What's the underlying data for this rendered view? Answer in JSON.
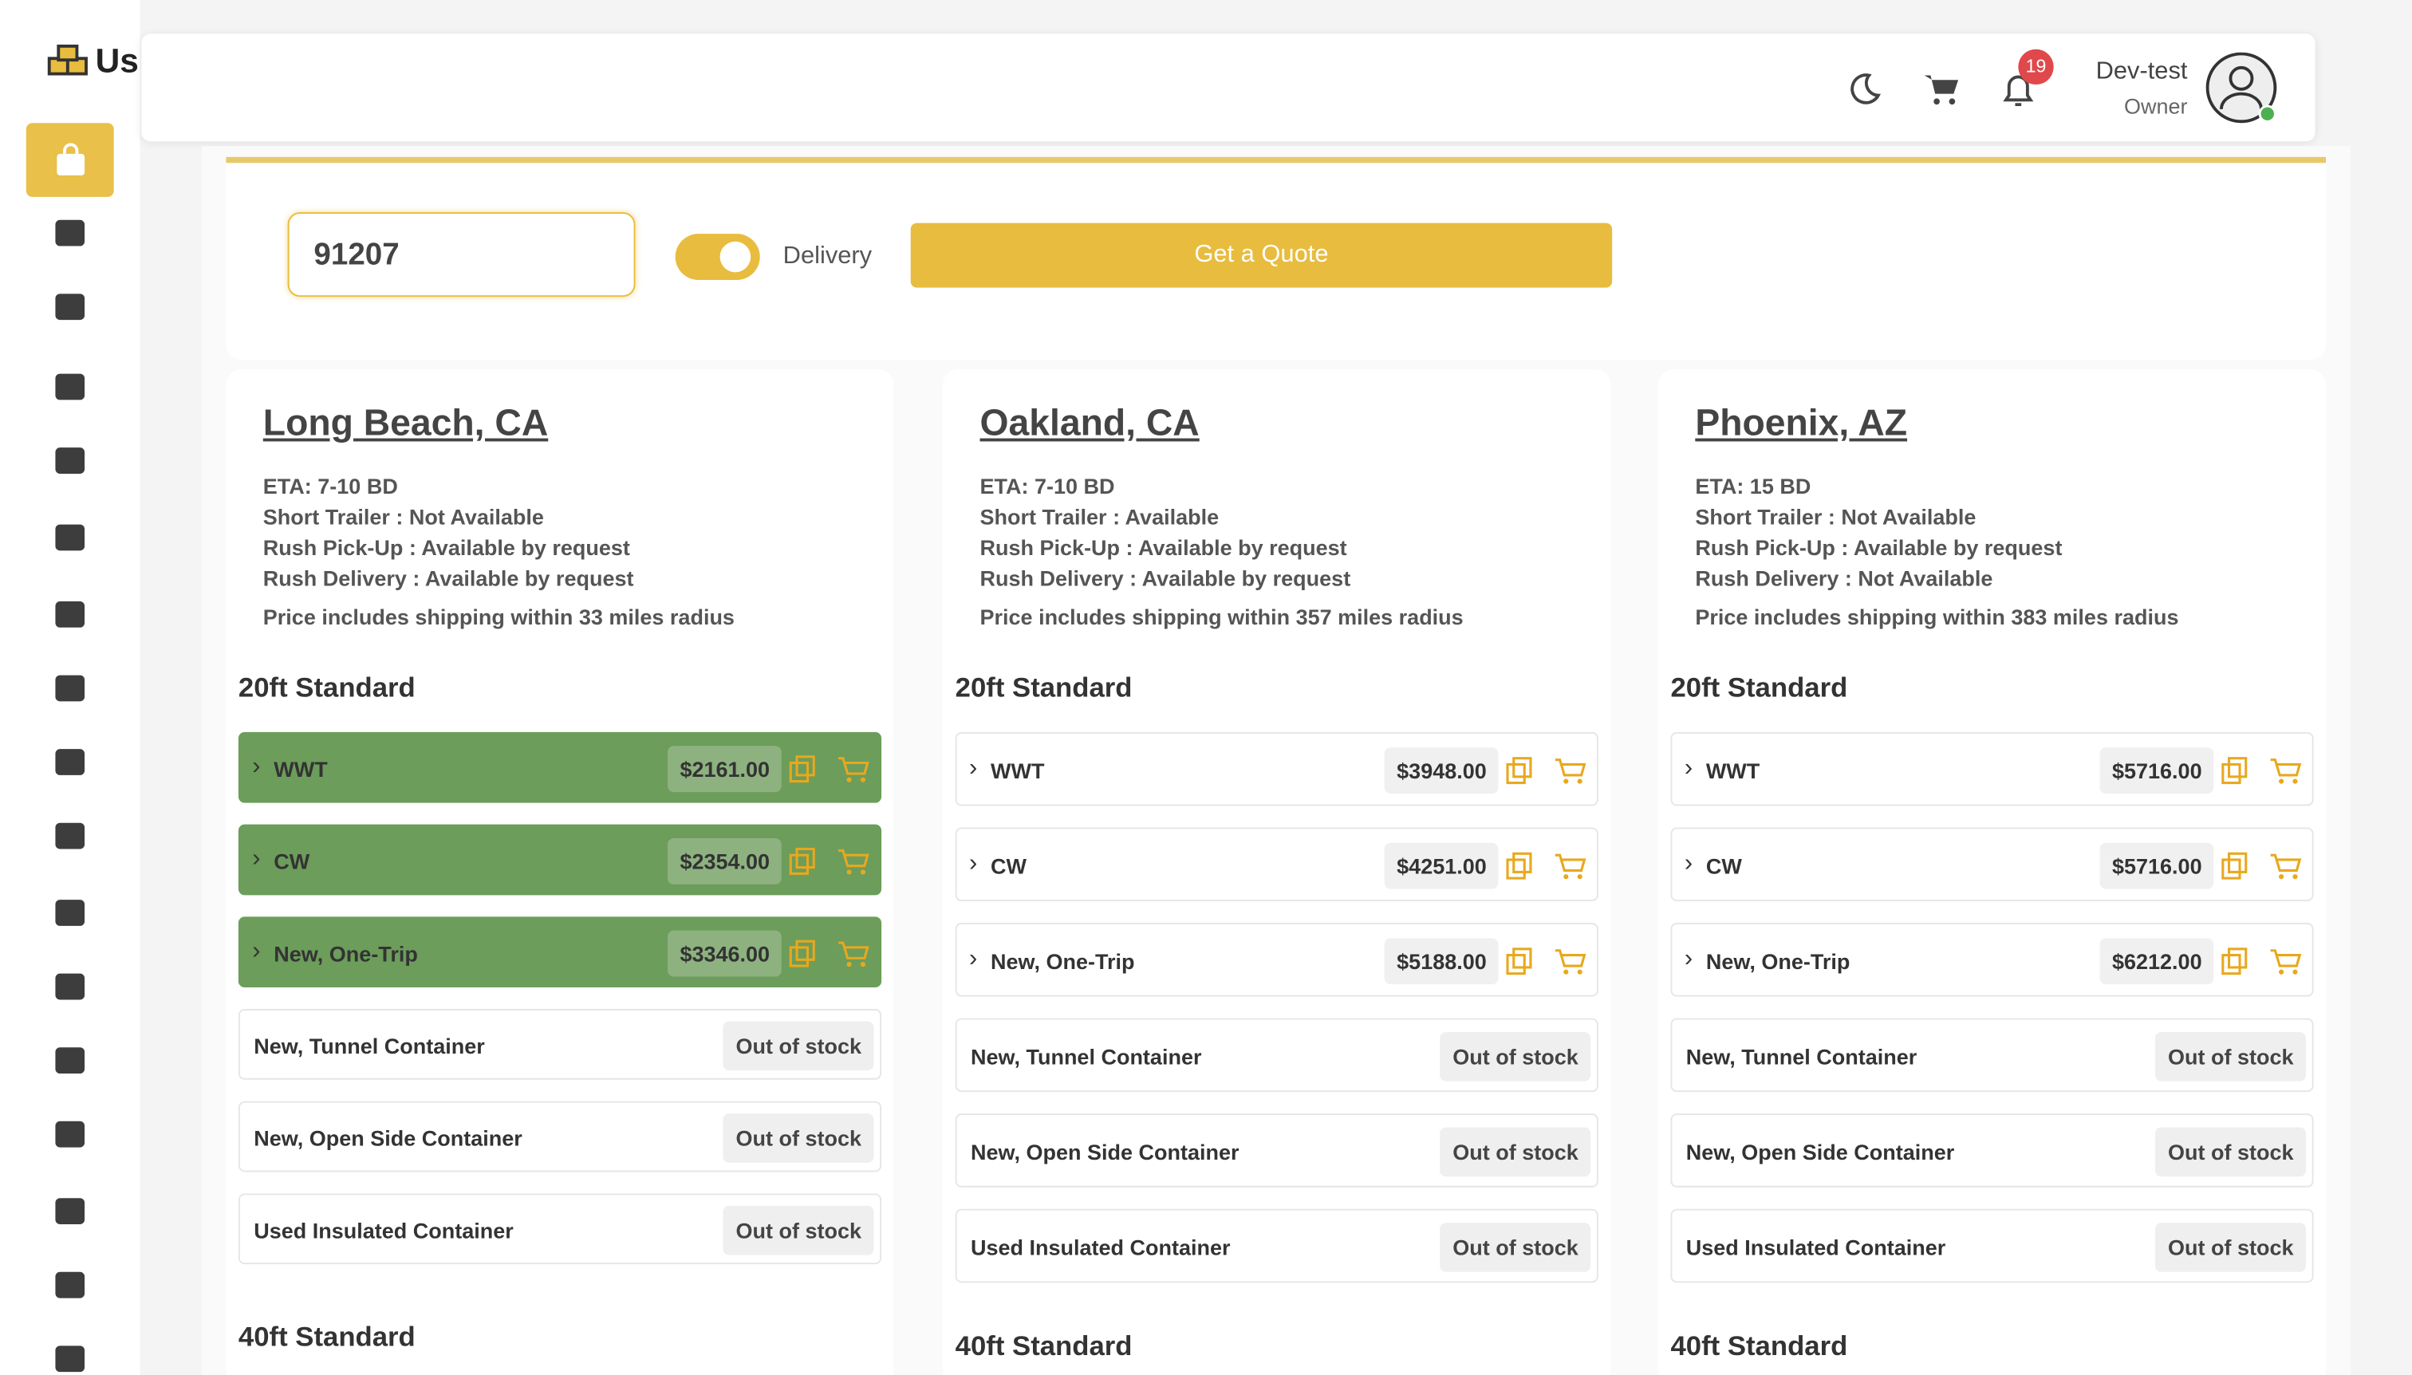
{
  "header": {
    "brand": "Us",
    "notification_count": "19",
    "user_name": "Dev-test",
    "user_role": "Owner"
  },
  "quote_form": {
    "zip": "91207",
    "toggle_label": "Delivery",
    "button": "Get a Quote"
  },
  "locations": [
    {
      "name": "Long Beach, CA",
      "details": [
        "ETA: 7-10 BD",
        "Short Trailer : Not Available",
        "Rush Pick-Up : Available by request",
        "Rush Delivery : Available by request"
      ],
      "note": "Price includes shipping within 33 miles radius",
      "section": "20ft Standard",
      "items": [
        {
          "name": "WWT",
          "price": "$2161.00"
        },
        {
          "name": "CW",
          "price": "$2354.00"
        },
        {
          "name": "New, One-Trip",
          "price": "$3346.00"
        },
        {
          "name": "New, Tunnel Container",
          "status": "Out of stock"
        },
        {
          "name": "New, Open Side Container",
          "status": "Out of stock"
        },
        {
          "name": "Used Insulated Container",
          "status": "Out of stock"
        }
      ],
      "next_section": "40ft Standard"
    },
    {
      "name": "Oakland, CA",
      "details": [
        "ETA: 7-10 BD",
        "Short Trailer : Available",
        "Rush Pick-Up : Available by request",
        "Rush Delivery : Available by request"
      ],
      "note": "Price includes shipping within 357 miles radius",
      "section": "20ft Standard",
      "items": [
        {
          "name": "WWT",
          "price": "$3948.00"
        },
        {
          "name": "CW",
          "price": "$4251.00"
        },
        {
          "name": "New, One-Trip",
          "price": "$5188.00"
        },
        {
          "name": "New, Tunnel Container",
          "status": "Out of stock"
        },
        {
          "name": "New, Open Side Container",
          "status": "Out of stock"
        },
        {
          "name": "Used Insulated Container",
          "status": "Out of stock"
        }
      ],
      "next_section": "40ft Standard"
    },
    {
      "name": "Phoenix, AZ",
      "details": [
        "ETA: 15 BD",
        "Short Trailer : Not Available",
        "Rush Pick-Up : Available by request",
        "Rush Delivery : Not Available"
      ],
      "note": "Price includes shipping within 383 miles radius",
      "section": "20ft Standard",
      "items": [
        {
          "name": "WWT",
          "price": "$5716.00"
        },
        {
          "name": "CW",
          "price": "$5716.00"
        },
        {
          "name": "New, One-Trip",
          "price": "$6212.00"
        },
        {
          "name": "New, Tunnel Container",
          "status": "Out of stock"
        },
        {
          "name": "New, Open Side Container",
          "status": "Out of stock"
        },
        {
          "name": "Used Insulated Container",
          "status": "Out of stock"
        }
      ],
      "next_section": "40ft Standard"
    }
  ]
}
